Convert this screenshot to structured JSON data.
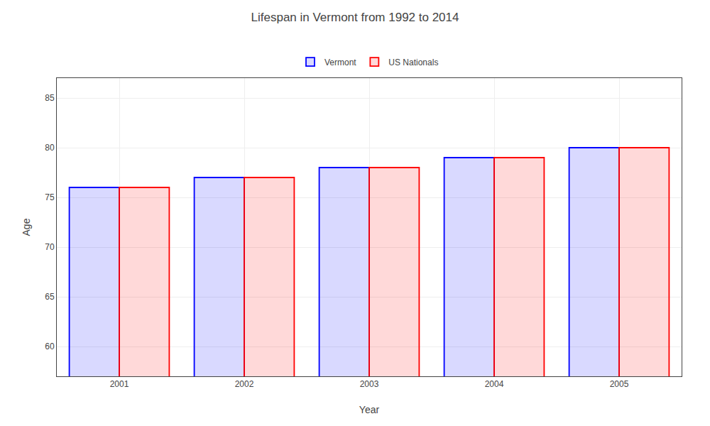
{
  "chart_data": {
    "type": "bar",
    "title": "Lifespan in Vermont from 1992 to 2014",
    "xlabel": "Year",
    "ylabel": "Age",
    "categories": [
      "2001",
      "2002",
      "2003",
      "2004",
      "2005"
    ],
    "series": [
      {
        "name": "Vermont",
        "color": "#0000ff",
        "values": [
          76,
          77,
          78,
          79,
          80
        ]
      },
      {
        "name": "US Nationals",
        "color": "#ff0000",
        "values": [
          76,
          77,
          78,
          79,
          80
        ]
      }
    ],
    "ylim": [
      57,
      87
    ],
    "yticks": [
      60,
      65,
      70,
      75,
      80,
      85
    ],
    "grid": true,
    "legend": "top"
  }
}
